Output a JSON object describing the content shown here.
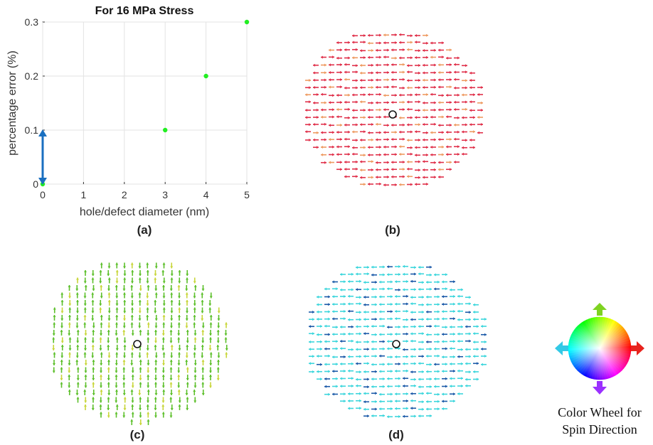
{
  "chart_data": {
    "type": "scatter",
    "title": "For 16 MPa Stress",
    "xlabel": "hole/defect diameter (nm)",
    "ylabel": "percentage error (%)",
    "xlim": [
      0,
      5
    ],
    "ylim": [
      0,
      0.3
    ],
    "x_ticks": [
      "0",
      "1",
      "2",
      "3",
      "4",
      "5"
    ],
    "y_ticks": [
      "0",
      "0.1",
      "0.2",
      "0.3"
    ],
    "grid": true,
    "series": [
      {
        "x": [
          0,
          3,
          4,
          5
        ],
        "y": [
          0,
          0.1,
          0.2,
          0.3
        ],
        "color": "#22ee22"
      }
    ],
    "annotation": {
      "type": "double-arrow",
      "x": 0,
      "y_from": 0,
      "y_to": 0.1,
      "color": "#1a6fc0"
    }
  },
  "panels": {
    "a": "(a)",
    "b": "(b)",
    "c": "(c)",
    "d": "(d)"
  },
  "spin_maps": {
    "b": {
      "base_color": "#e0304a",
      "alt_color": "#ee9a60",
      "direction": "horizontal"
    },
    "c": {
      "base_color": "#5cbf2a",
      "alt_color": "#c8d63a",
      "direction": "vertical"
    },
    "d": {
      "base_color": "#3cd6dc",
      "alt_color": "#1c5aa8",
      "direction": "horizontal"
    }
  },
  "color_wheel": {
    "caption_line1": "Color Wheel for",
    "caption_line2": "Spin Direction",
    "arrow_colors": {
      "up": "#7ed321",
      "right": "#e8231d",
      "down": "#9b30ff",
      "left": "#33c9e6"
    }
  }
}
